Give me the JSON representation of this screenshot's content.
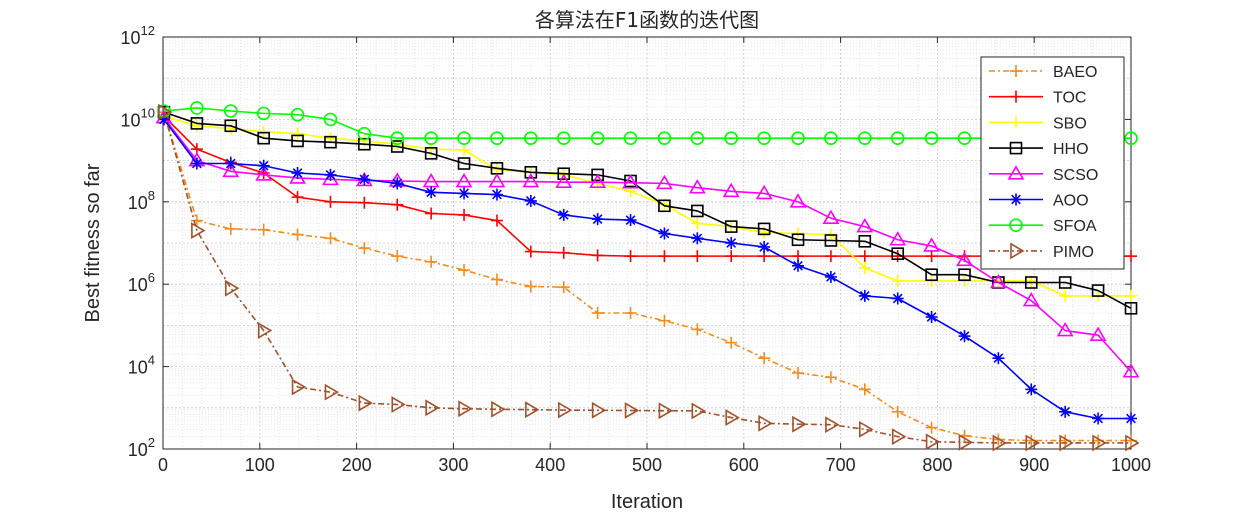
{
  "chart_data": {
    "type": "line",
    "title": "各算法在F1函数的迭代图",
    "xlabel": "Iteration",
    "ylabel": "Best fitness so far",
    "xlim": [
      0,
      1000
    ],
    "ylim_exponent": [
      2,
      12
    ],
    "yscale": "log",
    "grid": true,
    "legend_position": "top-right",
    "x_ticks": [
      "0",
      "100",
      "200",
      "300",
      "400",
      "500",
      "600",
      "700",
      "800",
      "900",
      "1000"
    ],
    "y_ticks": [
      {
        "base": "10",
        "exp": "2"
      },
      {
        "base": "10",
        "exp": "4"
      },
      {
        "base": "10",
        "exp": "6"
      },
      {
        "base": "10",
        "exp": "8"
      },
      {
        "base": "10",
        "exp": "10"
      },
      {
        "base": "10",
        "exp": "12"
      }
    ],
    "series": [
      {
        "name": "BAEO",
        "color": "#f28c1f",
        "dash": "6,3,2,3",
        "marker": "plus",
        "x": [
          1,
          35,
          70,
          104,
          139,
          173,
          208,
          242,
          277,
          311,
          345,
          380,
          414,
          449,
          483,
          518,
          552,
          587,
          621,
          656,
          690,
          725,
          759,
          794,
          828,
          863,
          897,
          932,
          966,
          1000
        ],
        "y": [
          15000000000.0,
          35000000.0,
          22000000.0,
          21000000.0,
          16000000.0,
          13000000.0,
          7500000.0,
          4800000.0,
          3500000.0,
          2200000.0,
          1300000.0,
          880000.0,
          850000.0,
          200000.0,
          200000.0,
          130000.0,
          80000.0,
          38000.0,
          16000.0,
          7000.0,
          5500.0,
          2800.0,
          800.0,
          330.0,
          210.0,
          170.0,
          160.0,
          160.0,
          160.0,
          160.0
        ]
      },
      {
        "name": "TOC",
        "color": "#ff0000",
        "dash": "",
        "marker": "plus",
        "x": [
          1,
          35,
          70,
          104,
          139,
          173,
          208,
          242,
          277,
          311,
          345,
          380,
          414,
          449,
          483,
          518,
          552,
          587,
          621,
          656,
          690,
          725,
          759,
          794,
          828,
          863,
          897,
          932,
          966,
          1000
        ],
        "y": [
          12000000000.0,
          1900000000.0,
          900000000.0,
          500000000.0,
          130000000.0,
          100000000.0,
          95000000.0,
          85000000.0,
          52000000.0,
          48000000.0,
          35000000.0,
          6200000.0,
          5800000.0,
          5000000.0,
          4800000.0,
          4800000.0,
          4800000.0,
          4800000.0,
          4800000.0,
          4800000.0,
          4800000.0,
          4800000.0,
          4800000.0,
          4800000.0,
          4800000.0,
          4800000.0,
          4800000.0,
          4800000.0,
          4800000.0,
          4800000.0
        ]
      },
      {
        "name": "SBO",
        "color": "#ffff00",
        "dash": "",
        "marker": "plus",
        "x": [
          1,
          35,
          70,
          104,
          139,
          173,
          208,
          242,
          277,
          311,
          345,
          380,
          414,
          449,
          483,
          518,
          552,
          587,
          621,
          656,
          690,
          725,
          759,
          794,
          828,
          863,
          897,
          932,
          966,
          1000
        ],
        "y": [
          12000000000.0,
          7000000000.0,
          6000000000.0,
          5000000000.0,
          4500000000.0,
          3500000000.0,
          3000000000.0,
          2500000000.0,
          1900000000.0,
          1800000000.0,
          600000000.0,
          520000000.0,
          450000000.0,
          280000000.0,
          180000000.0,
          85000000.0,
          30000000.0,
          25000000.0,
          18000000.0,
          17000000.0,
          16000000.0,
          2500000.0,
          1200000.0,
          1200000.0,
          1200000.0,
          1200000.0,
          1200000.0,
          520000.0,
          520000.0,
          520000.0
        ]
      },
      {
        "name": "HHO",
        "color": "#000000",
        "dash": "",
        "marker": "square",
        "x": [
          1,
          35,
          70,
          104,
          139,
          173,
          208,
          242,
          277,
          311,
          345,
          380,
          414,
          449,
          483,
          518,
          552,
          587,
          621,
          656,
          690,
          725,
          759,
          794,
          828,
          863,
          897,
          932,
          966,
          1000
        ],
        "y": [
          15000000000.0,
          8000000000.0,
          7000000000.0,
          3500000000.0,
          3000000000.0,
          2800000000.0,
          2500000000.0,
          2200000000.0,
          1500000000.0,
          850000000.0,
          650000000.0,
          520000000.0,
          480000000.0,
          450000000.0,
          320000000.0,
          80000000.0,
          60000000.0,
          25000000.0,
          22000000.0,
          12000000.0,
          11500000.0,
          11000000.0,
          5500000.0,
          1700000.0,
          1700000.0,
          1100000.0,
          1100000.0,
          1100000.0,
          700000.0,
          260000.0
        ]
      },
      {
        "name": "SCSO",
        "color": "#ff00ff",
        "dash": "",
        "marker": "triangle",
        "x": [
          1,
          35,
          70,
          104,
          139,
          173,
          208,
          242,
          277,
          311,
          345,
          380,
          414,
          449,
          483,
          518,
          552,
          587,
          621,
          656,
          690,
          725,
          759,
          794,
          828,
          863,
          897,
          932,
          966,
          1000
        ],
        "y": [
          11000000000.0,
          1000000000.0,
          550000000.0,
          450000000.0,
          380000000.0,
          350000000.0,
          330000000.0,
          320000000.0,
          310000000.0,
          310000000.0,
          310000000.0,
          310000000.0,
          300000000.0,
          300000000.0,
          290000000.0,
          280000000.0,
          220000000.0,
          180000000.0,
          160000000.0,
          100000000.0,
          40000000.0,
          25000000.0,
          12000000.0,
          8500000.0,
          3800000.0,
          1100000.0,
          400000.0,
          75000.0,
          58000.0,
          7500.0
        ]
      },
      {
        "name": "AOO",
        "color": "#0000ff",
        "dash": "",
        "marker": "asterisk",
        "x": [
          1,
          35,
          70,
          104,
          139,
          173,
          208,
          242,
          277,
          311,
          345,
          380,
          414,
          449,
          483,
          518,
          552,
          587,
          621,
          656,
          690,
          725,
          759,
          794,
          828,
          863,
          897,
          932,
          966,
          1000
        ],
        "y": [
          10000000000.0,
          850000000.0,
          850000000.0,
          750000000.0,
          500000000.0,
          450000000.0,
          350000000.0,
          280000000.0,
          170000000.0,
          160000000.0,
          150000000.0,
          105000000.0,
          48000000.0,
          38000000.0,
          36000000.0,
          17000000.0,
          13000000.0,
          10000000.0,
          8000000.0,
          2800000.0,
          1500000.0,
          520000.0,
          450000.0,
          160000.0,
          55000.0,
          16000.0,
          2800.0,
          800.0,
          550.0,
          550.0
        ]
      },
      {
        "name": "SFOA",
        "color": "#00ff00",
        "dash": "",
        "marker": "circle",
        "x": [
          1,
          35,
          70,
          104,
          139,
          173,
          208,
          242,
          277,
          311,
          345,
          380,
          414,
          449,
          483,
          518,
          552,
          587,
          621,
          656,
          690,
          725,
          759,
          794,
          828,
          863,
          897,
          932,
          966,
          1000
        ],
        "y": [
          16000000000.0,
          19000000000.0,
          16000000000.0,
          14000000000.0,
          13000000000.0,
          10000000000.0,
          4500000000.0,
          3500000000.0,
          3500000000.0,
          3500000000.0,
          3500000000.0,
          3500000000.0,
          3500000000.0,
          3500000000.0,
          3500000000.0,
          3500000000.0,
          3500000000.0,
          3500000000.0,
          3500000000.0,
          3500000000.0,
          3500000000.0,
          3500000000.0,
          3500000000.0,
          3500000000.0,
          3500000000.0,
          3500000000.0,
          3500000000.0,
          3500000000.0,
          3500000000.0,
          3500000000.0
        ]
      },
      {
        "name": "PIMO",
        "color": "#a0522d",
        "dash": "6,3,2,3",
        "marker": "triangle-right",
        "x": [
          1,
          35,
          70,
          104,
          139,
          173,
          208,
          242,
          277,
          311,
          345,
          380,
          414,
          449,
          483,
          518,
          552,
          587,
          621,
          656,
          690,
          725,
          759,
          794,
          828,
          863,
          897,
          932,
          966,
          1000
        ],
        "y": [
          15000000000.0,
          20000000.0,
          800000.0,
          75000.0,
          3200.0,
          2400.0,
          1300.0,
          1200.0,
          1000.0,
          950.0,
          920.0,
          900.0,
          880.0,
          870.0,
          860.0,
          850.0,
          840.0,
          580.0,
          420.0,
          400.0,
          390.0,
          300.0,
          200.0,
          150.0,
          145.0,
          140.0,
          140.0,
          140.0,
          140.0,
          140.0
        ]
      }
    ]
  }
}
